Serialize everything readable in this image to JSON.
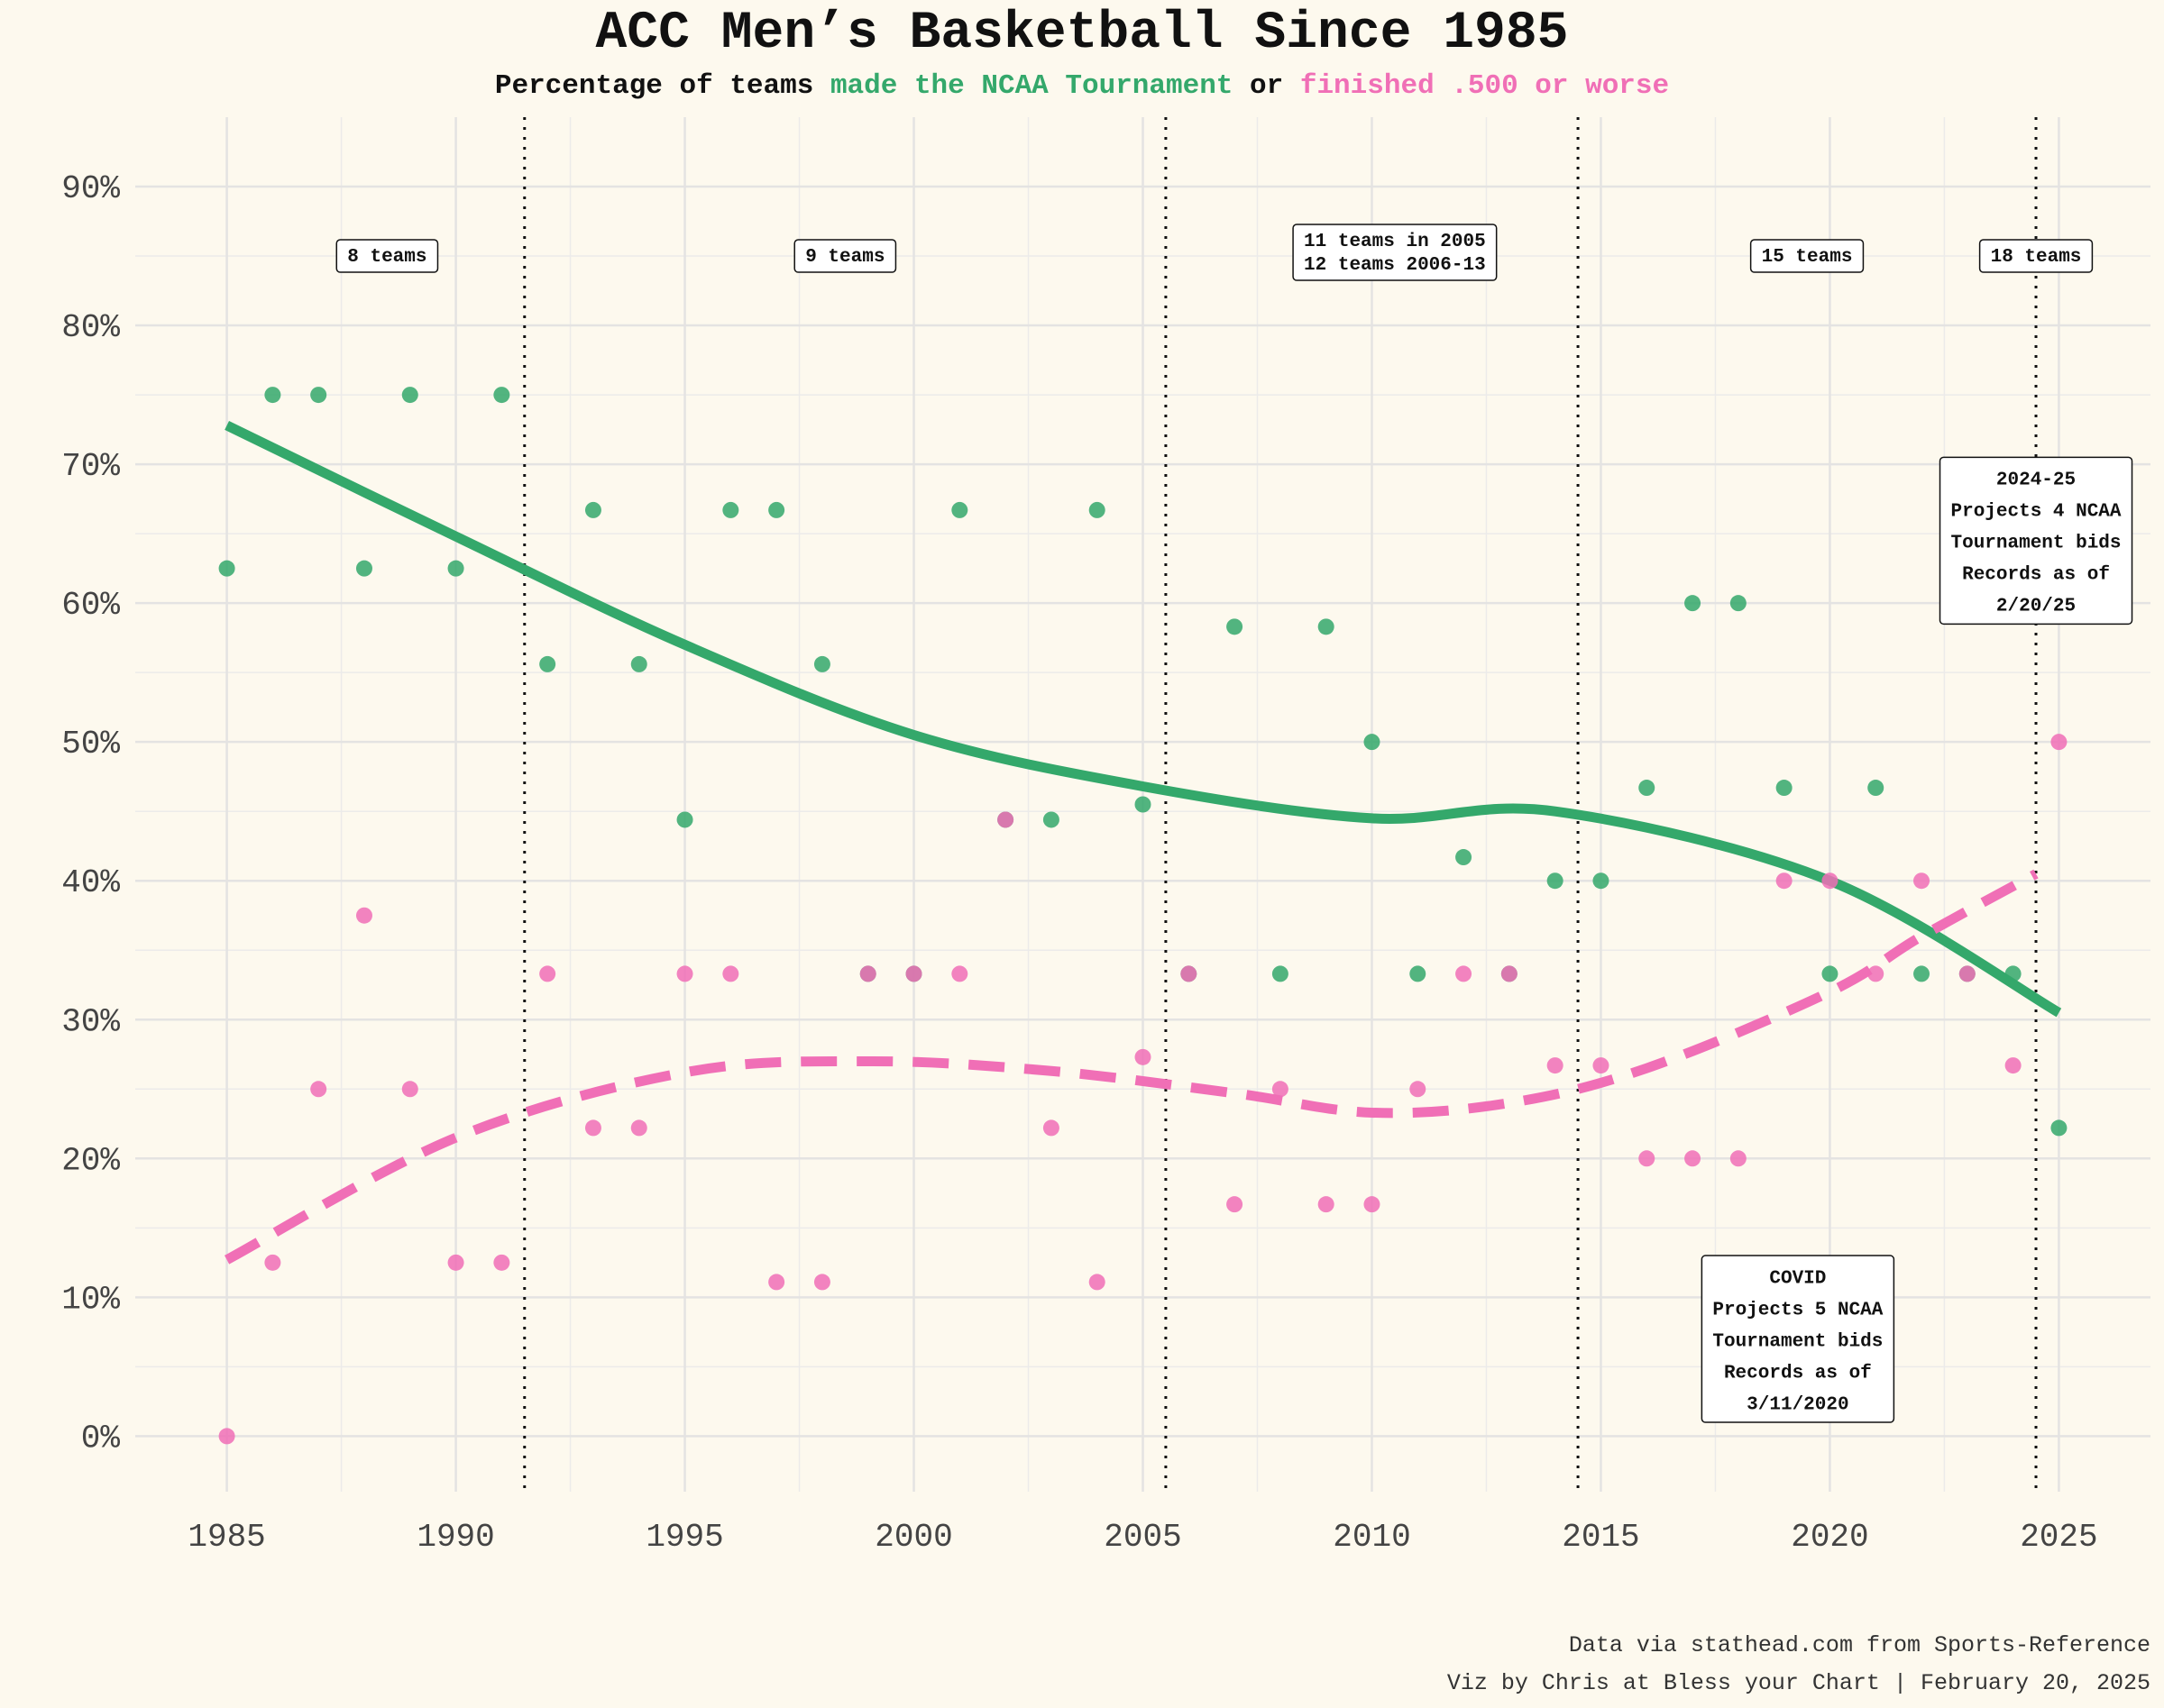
{
  "chart_data": {
    "type": "scatter",
    "title": "ACC Men’s Basketball Since 1985",
    "subtitle": {
      "parts": [
        {
          "text": "Percentage of teams ",
          "color": "#111111"
        },
        {
          "text": "made the NCAA Tournament",
          "color": "#34a86b"
        },
        {
          "text": " or ",
          "color": "#111111"
        },
        {
          "text": "finished .500 or worse",
          "color": "#f06fb6"
        }
      ]
    },
    "xlabel": "",
    "ylabel": "",
    "xlim": [
      1983,
      2027
    ],
    "ylim": [
      -4,
      95
    ],
    "x_ticks": [
      1985,
      1990,
      1995,
      2000,
      2005,
      2010,
      2015,
      2020,
      2025
    ],
    "y_ticks": [
      0,
      10,
      20,
      30,
      40,
      50,
      60,
      70,
      80,
      90
    ],
    "y_tick_labels": [
      "0%",
      "10%",
      "20%",
      "30%",
      "40%",
      "50%",
      "60%",
      "70%",
      "80%",
      "90%"
    ],
    "grid": true,
    "series": [
      {
        "name": "made the NCAA Tournament",
        "color": "#34a86b",
        "x": [
          1985,
          1986,
          1987,
          1988,
          1989,
          1990,
          1991,
          1992,
          1993,
          1994,
          1995,
          1996,
          1997,
          1998,
          1999,
          2000,
          2001,
          2002,
          2003,
          2004,
          2005,
          2006,
          2007,
          2008,
          2009,
          2010,
          2011,
          2012,
          2013,
          2014,
          2015,
          2016,
          2017,
          2018,
          2019,
          2020,
          2021,
          2022,
          2023,
          2024,
          2025
        ],
        "y": [
          62.5,
          75,
          75,
          62.5,
          75,
          62.5,
          75,
          55.6,
          66.7,
          55.6,
          44.4,
          66.7,
          66.7,
          55.6,
          33.3,
          33.3,
          66.7,
          44.4,
          44.4,
          66.7,
          45.5,
          33.3,
          58.3,
          33.3,
          58.3,
          50,
          33.3,
          41.7,
          33.3,
          40,
          40,
          46.7,
          60,
          60,
          46.7,
          33.3,
          46.7,
          33.3,
          33.3,
          33.3,
          22.2
        ],
        "trend": {
          "x": [
            1985,
            1990,
            1995,
            2000,
            2005,
            2010,
            2014,
            2020,
            2025
          ],
          "y": [
            72.8,
            64.8,
            57,
            50.5,
            46.8,
            44.5,
            45,
            40,
            30.5
          ]
        }
      },
      {
        "name": "finished .500 or worse",
        "color": "#f06fb6",
        "x": [
          1985,
          1986,
          1987,
          1988,
          1989,
          1990,
          1991,
          1992,
          1993,
          1994,
          1995,
          1996,
          1997,
          1998,
          1999,
          2000,
          2001,
          2002,
          2003,
          2004,
          2005,
          2006,
          2007,
          2008,
          2009,
          2010,
          2011,
          2012,
          2013,
          2014,
          2015,
          2016,
          2017,
          2018,
          2019,
          2020,
          2021,
          2022,
          2023,
          2024,
          2025
        ],
        "y": [
          0,
          12.5,
          25,
          37.5,
          25,
          12.5,
          12.5,
          33.3,
          22.2,
          22.2,
          33.3,
          33.3,
          11.1,
          11.1,
          33.3,
          33.3,
          33.3,
          44.4,
          22.2,
          11.1,
          27.3,
          33.3,
          16.7,
          25,
          16.7,
          16.7,
          25,
          33.3,
          33.3,
          26.7,
          26.7,
          20,
          20,
          20,
          40,
          40,
          33.3,
          40,
          33.3,
          26.7,
          50
        ],
        "trend": {
          "x": [
            1985,
            1990,
            1995,
            1999,
            2003,
            2007,
            2010,
            2013,
            2016,
            2020,
            2022,
            2024.5
          ],
          "y": [
            12.7,
            21.5,
            26.2,
            27,
            26.3,
            24.7,
            23.3,
            24,
            26.5,
            32,
            36,
            40.5
          ]
        }
      }
    ],
    "eras": [
      {
        "label": [
          "8 teams"
        ],
        "x": 1988.5,
        "y": 85
      },
      {
        "label": [
          "9 teams"
        ],
        "x": 1998.5,
        "y": 85
      },
      {
        "label": [
          "11 teams in 2005",
          "12 teams 2006-13"
        ],
        "x": 2010.5,
        "y": 85
      },
      {
        "label": [
          "15 teams"
        ],
        "x": 2019.5,
        "y": 85
      },
      {
        "label": [
          "18 teams"
        ],
        "x": 2024.5,
        "y": 85
      }
    ],
    "dividers": [
      1991.5,
      2005.5,
      2014.5,
      2024.5
    ],
    "annotations": [
      {
        "lines": [
          "2024-25",
          "Projects 4 NCAA",
          "Tournament bids",
          "Records as of",
          "2/20/25"
        ],
        "x": 2024.5,
        "y": 64.5
      },
      {
        "lines": [
          "COVID",
          "Projects 5 NCAA",
          "Tournament bids",
          "Records as of",
          "3/11/2020"
        ],
        "x": 2019.3,
        "y": 7
      }
    ],
    "captions": [
      "Data via stathead.com from Sports-Reference",
      "Viz by Chris at Bless your Chart | February 20, 2025"
    ]
  }
}
